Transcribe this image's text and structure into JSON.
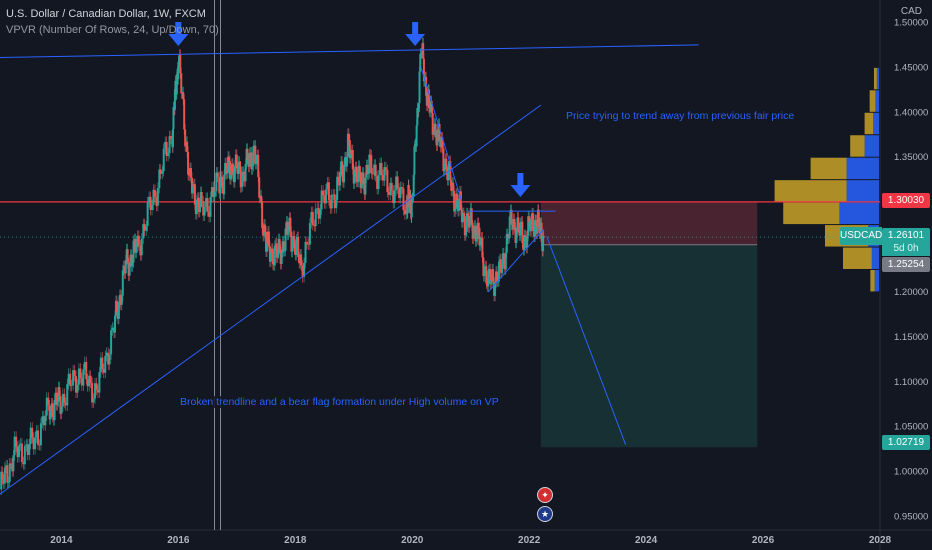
{
  "legend": {
    "title": "U.S. Dollar / Canadian Dollar, 1W, FXCM",
    "indicator": "VPVR (Number Of Rows, 24, Up/Down, 70)"
  },
  "currency_label": "CAD",
  "symbol_label": "USDCAD",
  "countdown": "5d 0h",
  "price_tags": {
    "resistance": "1.30030",
    "current": "1.26101",
    "entry": "1.25254",
    "target": "1.02719"
  },
  "annotations": {
    "top_right": "Price trying to trend away from previous fair price",
    "bottom": "Broken trendline and a bear flag formation under High volume on VP"
  },
  "colors": {
    "background": "#131722",
    "up": "#26a69a",
    "down": "#ef5350",
    "trendline": "#2962ff",
    "resistance": "#f23645",
    "vp_up": "#2962ff",
    "vp_down": "#c9a227",
    "stop_zone": "#5c2a36",
    "target_zone": "#1a3a3a"
  },
  "chart_data": {
    "type": "line",
    "series": [
      {
        "x": [
          2012.95,
          2013.2,
          2013.5,
          2013.8,
          2014.0,
          2014.3,
          2014.6,
          2014.9,
          2015.1,
          2015.3,
          2015.6,
          2015.9,
          2016.0,
          2016.2,
          2016.4,
          2016.7,
          2016.9,
          2017.1,
          2017.3,
          2017.5,
          2017.7,
          2017.9,
          2018.1,
          2018.4,
          2018.7,
          2018.9,
          2019.1,
          2019.3,
          2019.6,
          2019.9,
          2020.0,
          2020.15,
          2020.3,
          2020.5,
          2020.7,
          2020.9,
          2021.1,
          2021.3,
          2021.5,
          2021.7,
          2021.9,
          2022.1,
          2022.25
        ],
        "values": [
          0.98,
          1.02,
          1.03,
          1.07,
          1.08,
          1.11,
          1.09,
          1.16,
          1.23,
          1.25,
          1.31,
          1.38,
          1.46,
          1.32,
          1.29,
          1.32,
          1.34,
          1.33,
          1.36,
          1.25,
          1.24,
          1.27,
          1.23,
          1.3,
          1.31,
          1.36,
          1.32,
          1.34,
          1.32,
          1.3,
          1.3,
          1.47,
          1.4,
          1.36,
          1.31,
          1.28,
          1.27,
          1.21,
          1.22,
          1.28,
          1.26,
          1.28,
          1.261
        ]
      }
    ],
    "y_ticks": [
      "1.50000",
      "1.45000",
      "1.40000",
      "1.35000",
      "1.30000",
      "1.25000",
      "1.20000",
      "1.15000",
      "1.10000",
      "1.05000",
      "1.00000",
      "0.95000"
    ],
    "x_ticks": [
      "2014",
      "2016",
      "2018",
      "2020",
      "2022",
      "2024",
      "2026",
      "2028"
    ],
    "ylim": [
      0.935,
      1.525
    ],
    "xlim": [
      2012.95,
      2028.0
    ],
    "resistance_level": 1.3003,
    "current_price": 1.26101,
    "position": {
      "entry": 1.25254,
      "stop": 1.2998,
      "target": 1.02719,
      "start": 2022.2,
      "end": 2025.9
    },
    "projection": [
      [
        2022.3,
        1.262
      ],
      [
        2023.65,
        1.03
      ]
    ],
    "trendlines": [
      [
        [
          2012.95,
          1.461
        ],
        [
          2024.9,
          1.475
        ]
      ],
      [
        [
          2012.95,
          0.975
        ],
        [
          2022.2,
          1.408
        ]
      ],
      [
        [
          2020.15,
          1.45
        ],
        [
          2020.85,
          1.3
        ]
      ],
      [
        [
          2021.3,
          1.2
        ],
        [
          2022.25,
          1.27
        ]
      ],
      [
        [
          2020.95,
          1.29
        ],
        [
          2022.45,
          1.29
        ]
      ]
    ],
    "arrows_x": [
      2016.0,
      2020.05,
      2021.85
    ],
    "volume_profile": [
      {
        "price": 1.2875,
        "up": 0.55,
        "down": 0.78
      },
      {
        "price": 1.3125,
        "up": 0.45,
        "down": 1.0
      },
      {
        "price": 1.3375,
        "up": 0.45,
        "down": 0.5
      },
      {
        "price": 1.3625,
        "up": 0.2,
        "down": 0.2
      },
      {
        "price": 1.2625,
        "up": 0.15,
        "down": 0.6
      },
      {
        "price": 1.2375,
        "up": 0.1,
        "down": 0.4
      },
      {
        "price": 1.3875,
        "up": 0.08,
        "down": 0.12
      },
      {
        "price": 1.4125,
        "up": 0.05,
        "down": 0.08
      },
      {
        "price": 1.2125,
        "up": 0.06,
        "down": 0.06
      },
      {
        "price": 1.4375,
        "up": 0.03,
        "down": 0.04
      }
    ]
  }
}
